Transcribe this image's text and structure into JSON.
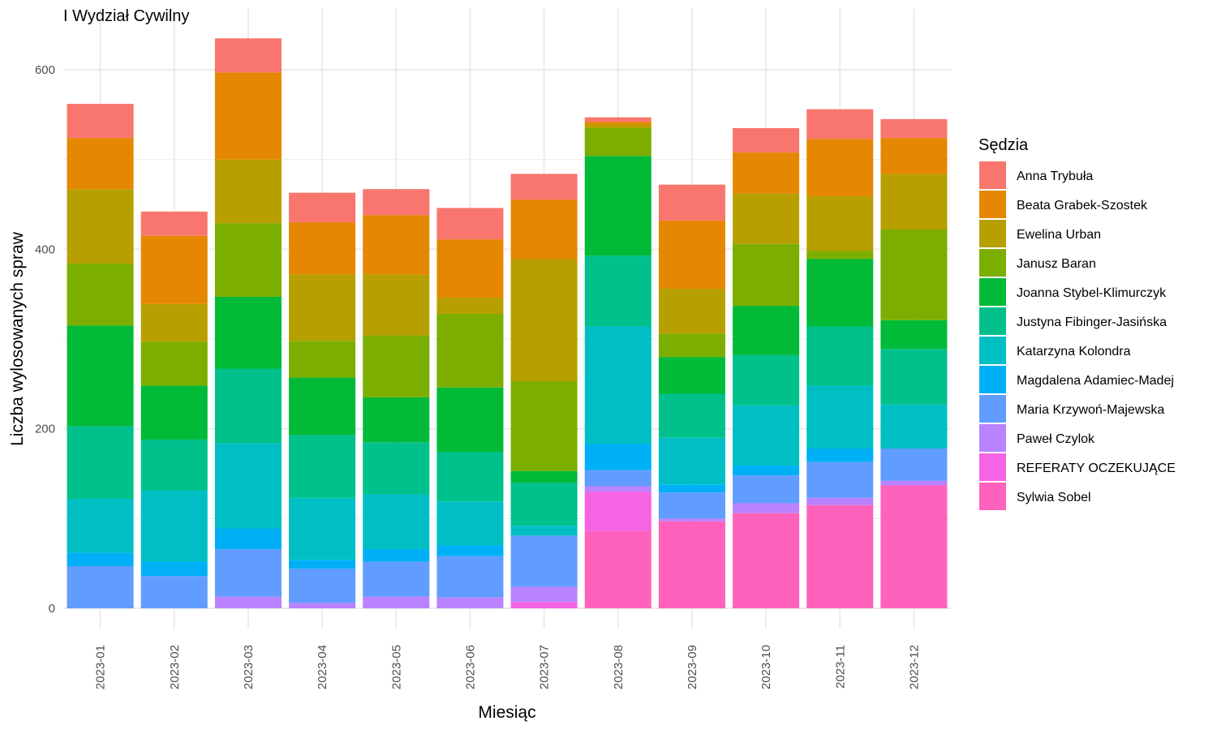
{
  "chart_data": {
    "type": "bar",
    "stacked": true,
    "title": "I Wydział Cywilny",
    "xlabel": "Miesiąc",
    "ylabel": "Liczba wylosowanych spraw",
    "ylim": [
      0,
      635
    ],
    "yticks": [
      0,
      200,
      400,
      600
    ],
    "grid": true,
    "legend_position": "right",
    "legend_title": "Sędzia",
    "categories": [
      "2023-01",
      "2023-02",
      "2023-03",
      "2023-04",
      "2023-05",
      "2023-06",
      "2023-07",
      "2023-08",
      "2023-09",
      "2023-10",
      "2023-11",
      "2023-12"
    ],
    "series": [
      {
        "name": "Sylwia Sobel",
        "color": "#FF62BC",
        "values": [
          0,
          0,
          0,
          0,
          0,
          0,
          0,
          86,
          97,
          106,
          115,
          137
        ]
      },
      {
        "name": "REFERATY OCZEKUJĄCE",
        "color": "#F564E3",
        "values": [
          0,
          0,
          0,
          0,
          0,
          0,
          7,
          44,
          0,
          0,
          0,
          0
        ]
      },
      {
        "name": "Paweł Czylok",
        "color": "#B983FF",
        "values": [
          0,
          0,
          13,
          6,
          13,
          12,
          17,
          6,
          3,
          11,
          8,
          5
        ]
      },
      {
        "name": "Maria Krzywoń-Majewska",
        "color": "#619CFF",
        "values": [
          47,
          36,
          53,
          38,
          39,
          46,
          57,
          18,
          29,
          31,
          40,
          36
        ]
      },
      {
        "name": "Magdalena Adamiec-Madej",
        "color": "#00B0F6",
        "values": [
          15,
          16,
          23,
          10,
          14,
          12,
          0,
          29,
          9,
          11,
          15,
          0
        ]
      },
      {
        "name": "Katarzyna Kolondra",
        "color": "#00BFC4",
        "values": [
          60,
          79,
          95,
          69,
          61,
          49,
          11,
          131,
          52,
          67,
          70,
          49
        ]
      },
      {
        "name": "Justyna Fibinger-Jasińska",
        "color": "#00C08B",
        "values": [
          81,
          57,
          83,
          70,
          58,
          55,
          48,
          79,
          49,
          56,
          66,
          62
        ]
      },
      {
        "name": "Joanna Stybel-Klimurczyk",
        "color": "#00BA38",
        "values": [
          112,
          60,
          80,
          64,
          50,
          72,
          13,
          111,
          41,
          55,
          75,
          32
        ]
      },
      {
        "name": "Janusz Baran",
        "color": "#7CAE00",
        "values": [
          69,
          49,
          82,
          41,
          69,
          82,
          100,
          31,
          26,
          69,
          9,
          101
        ]
      },
      {
        "name": "Ewelina Urban",
        "color": "#B79F00",
        "values": [
          83,
          42,
          71,
          74,
          68,
          18,
          136,
          4,
          50,
          56,
          61,
          62
        ]
      },
      {
        "name": "Beata Grabek-Szostek",
        "color": "#E58700",
        "values": [
          57,
          76,
          97,
          58,
          66,
          65,
          66,
          3,
          76,
          46,
          64,
          40
        ]
      },
      {
        "name": "Anna Trybuła",
        "color": "#F8766D",
        "values": [
          38,
          27,
          38,
          33,
          29,
          35,
          29,
          5,
          40,
          27,
          33,
          21
        ]
      }
    ]
  }
}
